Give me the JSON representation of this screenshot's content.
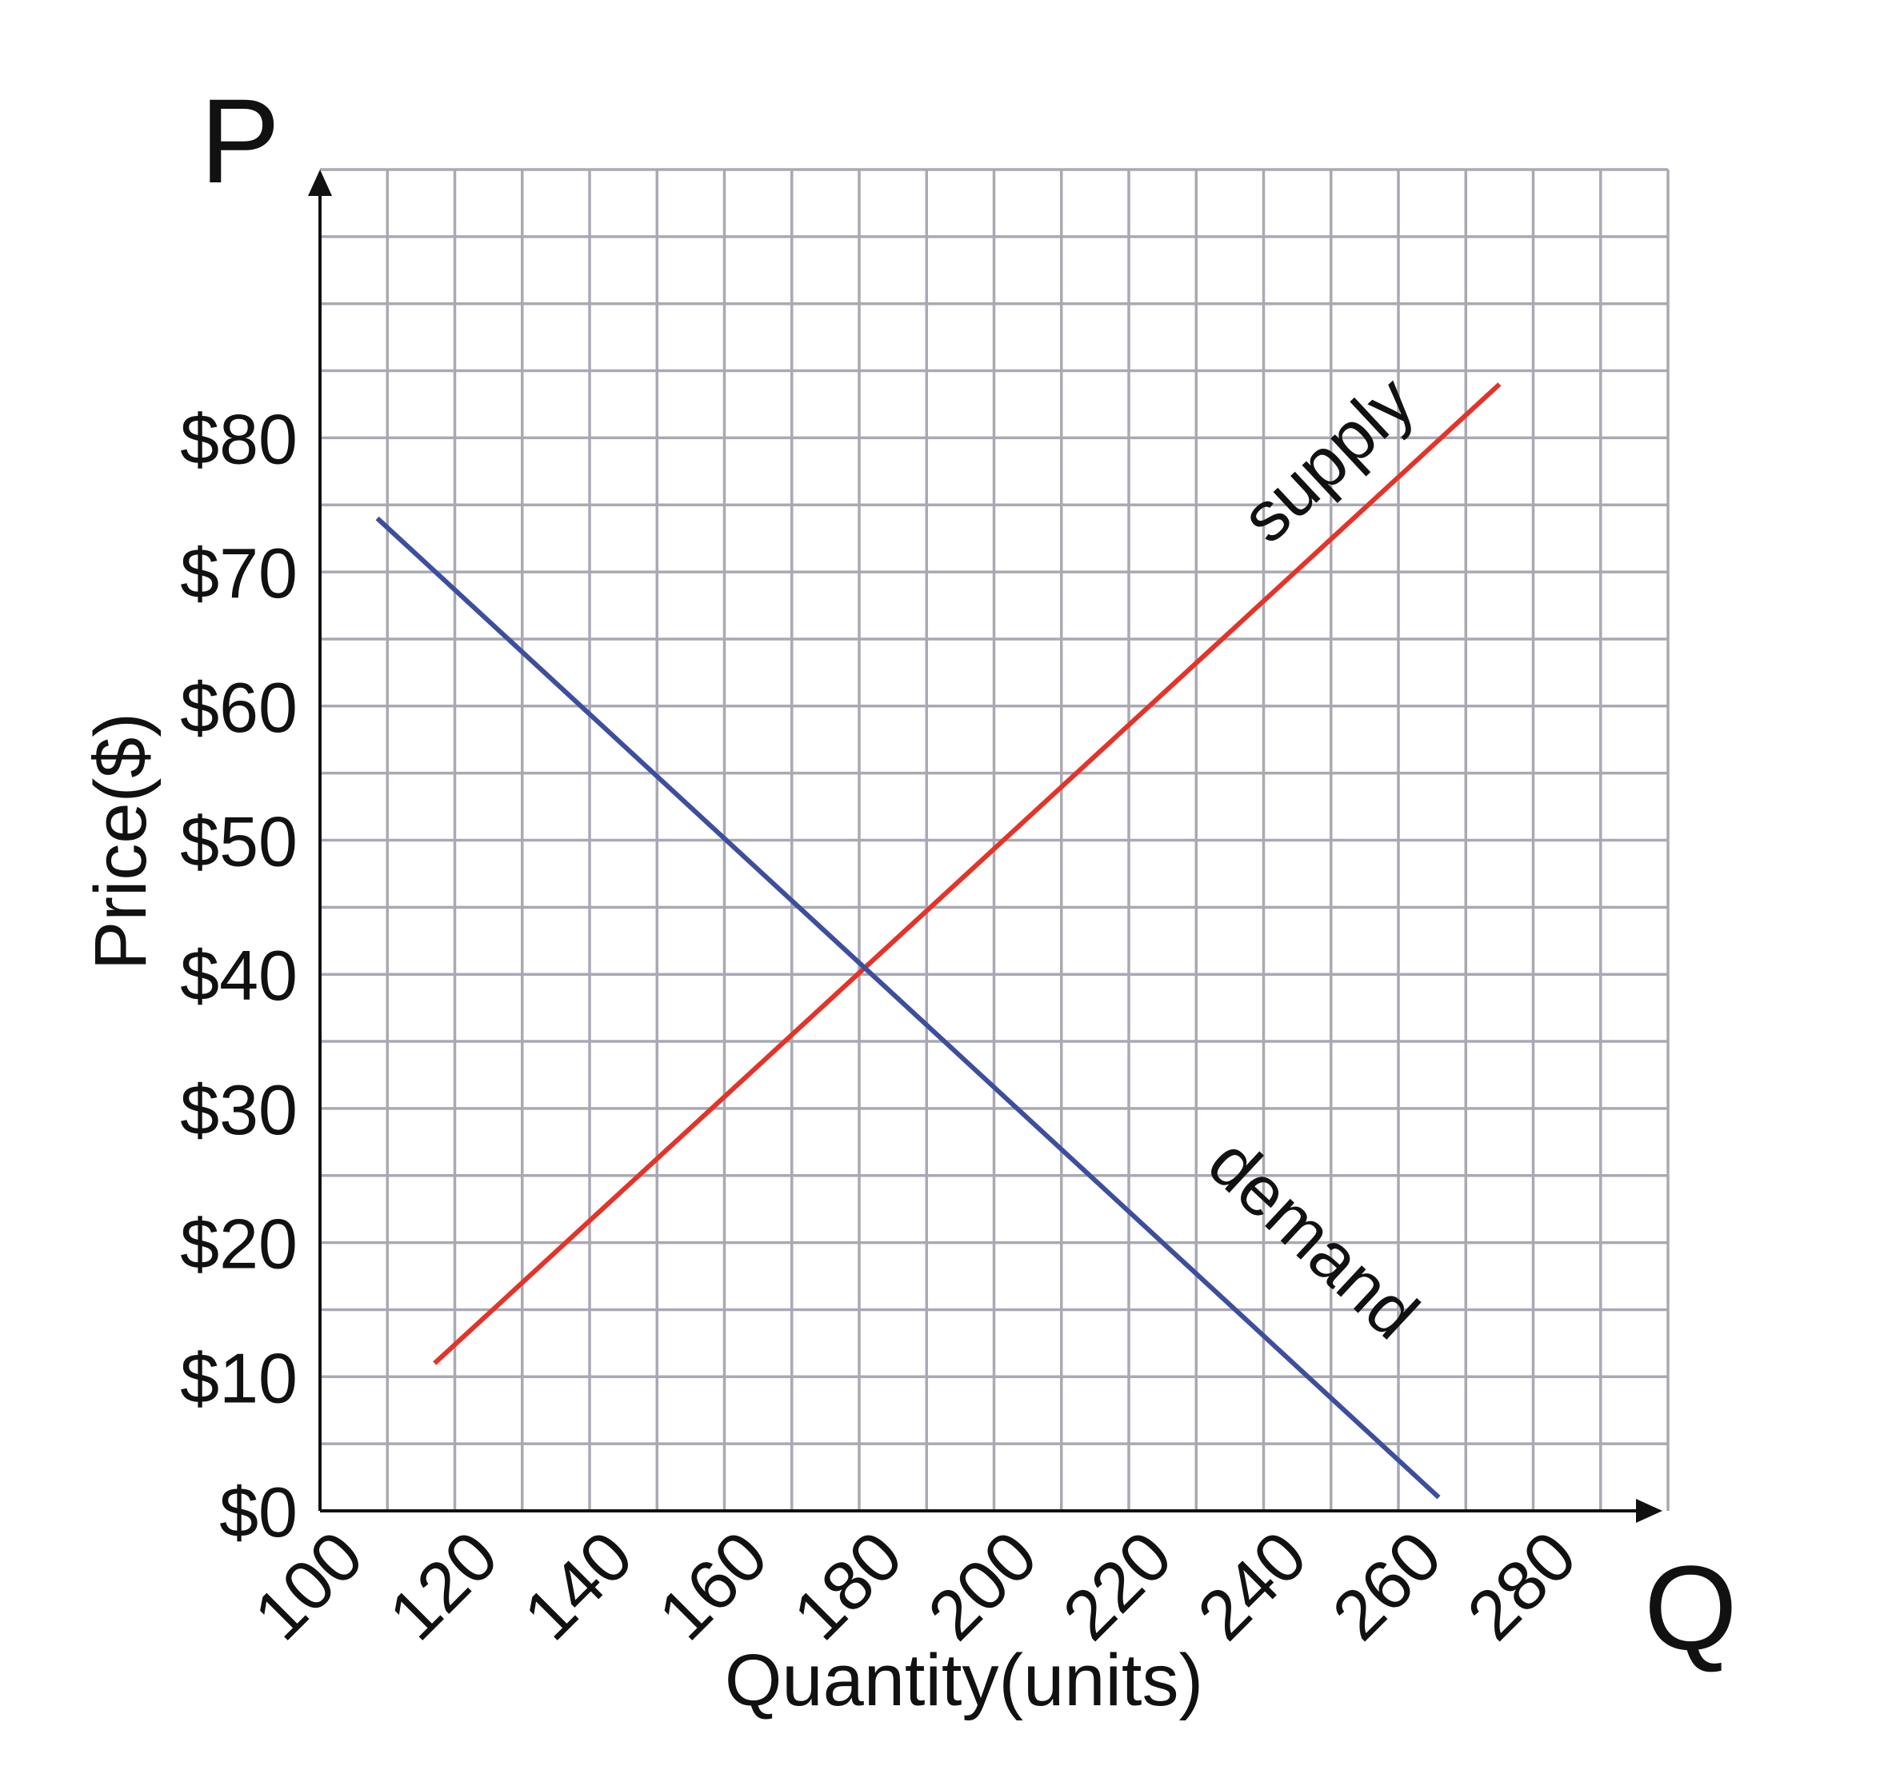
{
  "chart_data": {
    "type": "line",
    "xlabel": "Quantity(units)",
    "ylabel": "Price($)",
    "x_axis_letter": "Q",
    "y_axis_letter": "P",
    "xlim": [
      100,
      300
    ],
    "ylim": [
      0,
      100
    ],
    "x_ticks": [
      100,
      120,
      140,
      160,
      180,
      200,
      220,
      240,
      260,
      280
    ],
    "x_tick_labels": [
      "100",
      "120",
      "140",
      "160",
      "180",
      "200",
      "220",
      "240",
      "260",
      "280"
    ],
    "y_ticks": [
      0,
      10,
      20,
      30,
      40,
      50,
      60,
      70,
      80
    ],
    "y_tick_labels": [
      "$0",
      "$10",
      "$20",
      "$30",
      "$40",
      "$50",
      "$60",
      "$70",
      "$80"
    ],
    "grid": true,
    "grid_x_step": 10,
    "grid_y_step": 5,
    "series": [
      {
        "name": "supply",
        "color": "#e3342a",
        "points": [
          [
            117,
            11
          ],
          [
            275,
            84
          ]
        ]
      },
      {
        "name": "demand",
        "color": "#3d4f9c",
        "points": [
          [
            108.5,
            74
          ],
          [
            266,
            1
          ]
        ]
      }
    ]
  }
}
